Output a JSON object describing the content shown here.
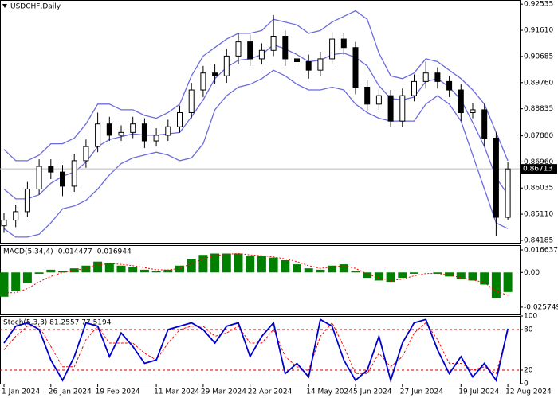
{
  "chart_data": [
    {
      "type": "candlestick",
      "title": "USDCHF,Daily",
      "categories": [
        "1 Jan 2024",
        null,
        null,
        null,
        "26 Jan 2024",
        null,
        null,
        null,
        "19 Feb 2024",
        null,
        null,
        null,
        null,
        "11 Mar 2024",
        null,
        null,
        null,
        "29 Mar 2024",
        null,
        null,
        null,
        "22 Apr 2024",
        null,
        null,
        null,
        null,
        "14 May 2024",
        null,
        null,
        null,
        "5 Jun 2024",
        null,
        null,
        null,
        "27 Jun 2024",
        null,
        null,
        null,
        null,
        "19 Jul 2024",
        null,
        null,
        null,
        "12 Aug 2024"
      ],
      "open": [
        0.847,
        0.849,
        0.852,
        0.86,
        0.868,
        0.866,
        0.861,
        0.87,
        0.875,
        0.883,
        0.879,
        0.88,
        0.883,
        0.877,
        0.879,
        0.882,
        0.887,
        0.895,
        0.901,
        0.9,
        0.907,
        0.912,
        0.906,
        0.909,
        0.914,
        0.906,
        0.905,
        0.902,
        0.906,
        0.913,
        0.91,
        0.896,
        0.89,
        0.893,
        0.884,
        0.893,
        0.898,
        0.901,
        0.898,
        0.895,
        0.887,
        0.888,
        0.878,
        0.85
      ],
      "high": [
        0.8515,
        0.8545,
        0.8625,
        0.8705,
        0.8705,
        0.8685,
        0.8725,
        0.8775,
        0.887,
        0.8855,
        0.8825,
        0.8855,
        0.885,
        0.8815,
        0.8845,
        0.8895,
        0.8975,
        0.9035,
        0.904,
        0.9095,
        0.915,
        0.9145,
        0.9115,
        0.9215,
        0.916,
        0.9085,
        0.9075,
        0.9085,
        0.9155,
        0.915,
        0.912,
        0.8985,
        0.8955,
        0.895,
        0.8955,
        0.9005,
        0.905,
        0.903,
        0.9,
        0.897,
        0.8905,
        0.89,
        0.88,
        0.8695
      ],
      "low": [
        0.8445,
        0.8465,
        0.85,
        0.858,
        0.8635,
        0.8575,
        0.859,
        0.8675,
        0.873,
        0.877,
        0.877,
        0.878,
        0.8745,
        0.875,
        0.877,
        0.88,
        0.885,
        0.8925,
        0.897,
        0.8975,
        0.904,
        0.9035,
        0.904,
        0.907,
        0.9035,
        0.9025,
        0.899,
        0.9,
        0.904,
        0.9075,
        0.8935,
        0.8875,
        0.888,
        0.882,
        0.882,
        0.891,
        0.8955,
        0.8955,
        0.8925,
        0.884,
        0.885,
        0.875,
        0.8435,
        0.849
      ],
      "close": [
        0.849,
        0.852,
        0.86,
        0.868,
        0.866,
        0.861,
        0.87,
        0.875,
        0.883,
        0.879,
        0.88,
        0.883,
        0.877,
        0.879,
        0.882,
        0.887,
        0.895,
        0.901,
        0.9,
        0.907,
        0.912,
        0.906,
        0.909,
        0.914,
        0.906,
        0.905,
        0.902,
        0.906,
        0.913,
        0.91,
        0.896,
        0.89,
        0.893,
        0.884,
        0.893,
        0.898,
        0.901,
        0.898,
        0.895,
        0.887,
        0.888,
        0.878,
        0.85,
        0.8671
      ],
      "color_up": "#ffffff",
      "color_down": "#000000",
      "bands": {
        "color": "#6b6be0",
        "upper": [
          0.874,
          0.87,
          0.87,
          0.872,
          0.876,
          0.876,
          0.878,
          0.883,
          0.89,
          0.89,
          0.888,
          0.888,
          0.886,
          0.885,
          0.887,
          0.89,
          0.9,
          0.907,
          0.91,
          0.913,
          0.915,
          0.915,
          0.916,
          0.92,
          0.919,
          0.918,
          0.915,
          0.916,
          0.919,
          0.921,
          0.923,
          0.92,
          0.908,
          0.9,
          0.899,
          0.901,
          0.906,
          0.905,
          0.902,
          0.899,
          0.895,
          0.89,
          0.88,
          0.87
        ],
        "middle": [
          0.86,
          0.8565,
          0.8565,
          0.858,
          0.862,
          0.8645,
          0.866,
          0.8695,
          0.875,
          0.8775,
          0.8785,
          0.8795,
          0.879,
          0.879,
          0.8795,
          0.88,
          0.8855,
          0.8915,
          0.899,
          0.903,
          0.9055,
          0.906,
          0.9075,
          0.911,
          0.9095,
          0.9075,
          0.905,
          0.9055,
          0.9075,
          0.908,
          0.9065,
          0.9035,
          0.8965,
          0.892,
          0.8915,
          0.8925,
          0.898,
          0.899,
          0.896,
          0.8915,
          0.8835,
          0.875,
          0.864,
          0.858
        ],
        "lower": [
          0.846,
          0.843,
          0.843,
          0.844,
          0.848,
          0.853,
          0.854,
          0.856,
          0.86,
          0.865,
          0.869,
          0.871,
          0.872,
          0.873,
          0.872,
          0.87,
          0.871,
          0.876,
          0.888,
          0.893,
          0.896,
          0.897,
          0.899,
          0.902,
          0.9,
          0.897,
          0.895,
          0.895,
          0.896,
          0.895,
          0.89,
          0.887,
          0.885,
          0.884,
          0.884,
          0.884,
          0.89,
          0.893,
          0.89,
          0.884,
          0.872,
          0.86,
          0.848,
          0.846
        ]
      },
      "last_price": 0.86713,
      "last_price_color": "#000000",
      "ylim": [
        0.841,
        0.9268
      ],
      "yticks": [
        0.92535,
        {
          "value": 0.9161,
          "label": "0.91610"
        },
        0.90685,
        {
          "value": 0.8976,
          "label": "0.89760"
        },
        0.88835,
        {
          "value": 0.8788,
          "label": "0.87880"
        },
        {
          "value": 0.8696,
          "label": "0.86960"
        },
        0.86035,
        {
          "value": 0.8511,
          "label": "0.85110"
        },
        0.84185
      ]
    },
    {
      "type": "macd",
      "title": "MACD(5,34,4) -0.014477 -0.016944",
      "values": [
        -0.018,
        -0.014,
        -0.008,
        -0.001,
        0.002,
        0.001,
        0.003,
        0.005,
        0.008,
        0.007,
        0.005,
        0.004,
        0.002,
        0.001,
        0.002,
        0.005,
        0.01,
        0.013,
        0.014,
        0.014,
        0.014,
        0.012,
        0.012,
        0.011,
        0.009,
        0.006,
        0.003,
        0.002,
        0.005,
        0.006,
        0.001,
        -0.004,
        -0.006,
        -0.007,
        -0.004,
        -0.001,
        0.0,
        -0.001,
        -0.003,
        -0.005,
        -0.006,
        -0.009,
        -0.019,
        -0.0145
      ],
      "signal": [
        -0.015,
        -0.015,
        -0.012,
        -0.007,
        -0.003,
        0.0,
        0.0015,
        0.003,
        0.0055,
        0.0065,
        0.006,
        0.005,
        0.0035,
        0.002,
        0.0018,
        0.003,
        0.0065,
        0.01,
        0.0125,
        0.0135,
        0.014,
        0.013,
        0.0125,
        0.0115,
        0.01,
        0.008,
        0.005,
        0.003,
        0.004,
        0.005,
        0.003,
        -0.001,
        -0.004,
        -0.006,
        -0.005,
        -0.0025,
        -0.0008,
        -0.0008,
        -0.002,
        -0.004,
        -0.0055,
        -0.0075,
        -0.014,
        -0.0169
      ],
      "color": "#008000",
      "signal_color": "#ff0000",
      "ylim": [
        -0.0311,
        0.0202
      ],
      "yticks": [
        0.016637,
        {
          "value": 0,
          "label": "0.00"
        },
        -0.025749
      ]
    },
    {
      "type": "stoch",
      "title": "Stoch(5,3,3) 81.2557 77.5194",
      "values": [
        60,
        85,
        90,
        80,
        35,
        5,
        40,
        90,
        85,
        40,
        75,
        55,
        30,
        35,
        80,
        85,
        90,
        80,
        60,
        85,
        90,
        40,
        70,
        90,
        15,
        30,
        10,
        95,
        85,
        35,
        5,
        20,
        70,
        5,
        60,
        90,
        95,
        50,
        15,
        40,
        10,
        30,
        5,
        81.2557
      ],
      "signal": [
        50,
        70,
        85,
        85,
        55,
        25,
        25,
        65,
        85,
        60,
        60,
        60,
        45,
        35,
        60,
        80,
        85,
        85,
        70,
        75,
        85,
        60,
        60,
        80,
        40,
        25,
        20,
        70,
        90,
        55,
        15,
        15,
        45,
        25,
        40,
        75,
        90,
        65,
        30,
        30,
        20,
        25,
        15,
        77.5194
      ],
      "color": "#0000cd",
      "signal_color": "#ff0000",
      "levels": [
        80,
        20
      ],
      "level_color": "#c00000",
      "ylim": [
        0,
        100
      ],
      "yticks": [
        100,
        80,
        20,
        0
      ]
    }
  ]
}
